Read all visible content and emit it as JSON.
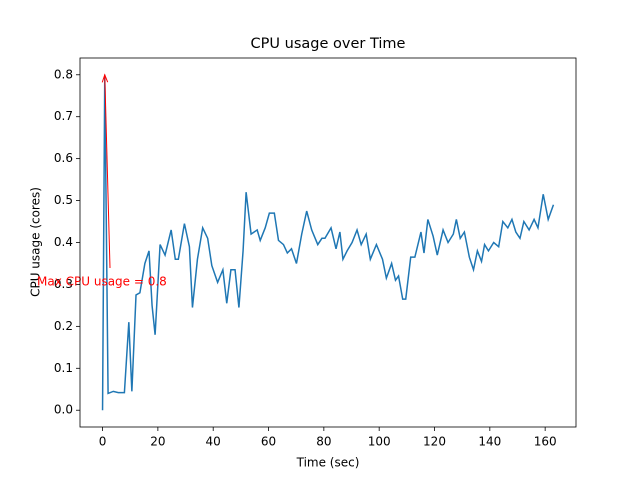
{
  "chart_data": {
    "type": "line",
    "title": "CPU usage over Time",
    "x_label": "Time (sec)",
    "y_label": "CPU usage (cores)",
    "annotation": "Max CPU usage = 0.8",
    "annotation_color": "#ff0000",
    "x": [
      0,
      0.8,
      2,
      3.9,
      5.7,
      7.9,
      9.5,
      10.6,
      12.1,
      13.5,
      15.3,
      16.8,
      17.9,
      19,
      20.8,
      22.6,
      24.8,
      26.3,
      27.4,
      29.6,
      31.4,
      32.5,
      34.3,
      36.2,
      38,
      39.5,
      41.6,
      43.5,
      44.9,
      46.4,
      47.9,
      49.3,
      50.8,
      51.9,
      53.7,
      55.9,
      57,
      58.8,
      60.3,
      62.1,
      63.6,
      65.4,
      66.8,
      68.3,
      70.1,
      72,
      73.8,
      75.6,
      77.8,
      79.3,
      80.4,
      82.6,
      84.4,
      85.8,
      86.9,
      88.4,
      90.2,
      92,
      93.5,
      95.3,
      96.8,
      99,
      101.2,
      102.6,
      104.5,
      105.9,
      107,
      108.5,
      109.6,
      111.4,
      112.9,
      115.1,
      116.2,
      117.6,
      119.5,
      121,
      123.1,
      124.9,
      126.8,
      127.9,
      129.3,
      130.8,
      132.6,
      134.1,
      135.5,
      137,
      138.1,
      139.5,
      141.4,
      143.2,
      144.7,
      146.5,
      148,
      149.4,
      150.9,
      152.3,
      154.2,
      156,
      157.4,
      159.3,
      161.1,
      163
    ],
    "series": [
      {
        "name": "CPU usage",
        "color": "#1f77b4",
        "values": [
          0,
          0.8,
          0.04,
          0.045,
          0.042,
          0.042,
          0.21,
          0.045,
          0.275,
          0.28,
          0.35,
          0.38,
          0.25,
          0.18,
          0.395,
          0.37,
          0.43,
          0.36,
          0.36,
          0.445,
          0.39,
          0.245,
          0.36,
          0.435,
          0.41,
          0.345,
          0.305,
          0.335,
          0.255,
          0.335,
          0.335,
          0.245,
          0.38,
          0.52,
          0.42,
          0.43,
          0.405,
          0.435,
          0.47,
          0.47,
          0.405,
          0.395,
          0.375,
          0.385,
          0.35,
          0.42,
          0.475,
          0.43,
          0.395,
          0.41,
          0.41,
          0.435,
          0.385,
          0.425,
          0.36,
          0.38,
          0.4,
          0.43,
          0.395,
          0.42,
          0.36,
          0.395,
          0.36,
          0.315,
          0.35,
          0.31,
          0.32,
          0.265,
          0.265,
          0.365,
          0.365,
          0.425,
          0.375,
          0.455,
          0.415,
          0.37,
          0.43,
          0.4,
          0.42,
          0.455,
          0.41,
          0.425,
          0.365,
          0.335,
          0.38,
          0.355,
          0.395,
          0.38,
          0.4,
          0.39,
          0.45,
          0.435,
          0.455,
          0.425,
          0.41,
          0.45,
          0.43,
          0.455,
          0.435,
          0.515,
          0.455,
          0.49
        ]
      }
    ],
    "xlim": [
      -8.15,
      171.15
    ],
    "ylim": [
      -0.04,
      0.84
    ],
    "xticks": [
      0,
      20,
      40,
      60,
      80,
      100,
      120,
      140,
      160
    ],
    "yticks": [
      {
        "value": 0,
        "label": "0.0"
      },
      0.1,
      0.2,
      0.3,
      0.4,
      0.5,
      0.6,
      0.7,
      0.8
    ]
  }
}
